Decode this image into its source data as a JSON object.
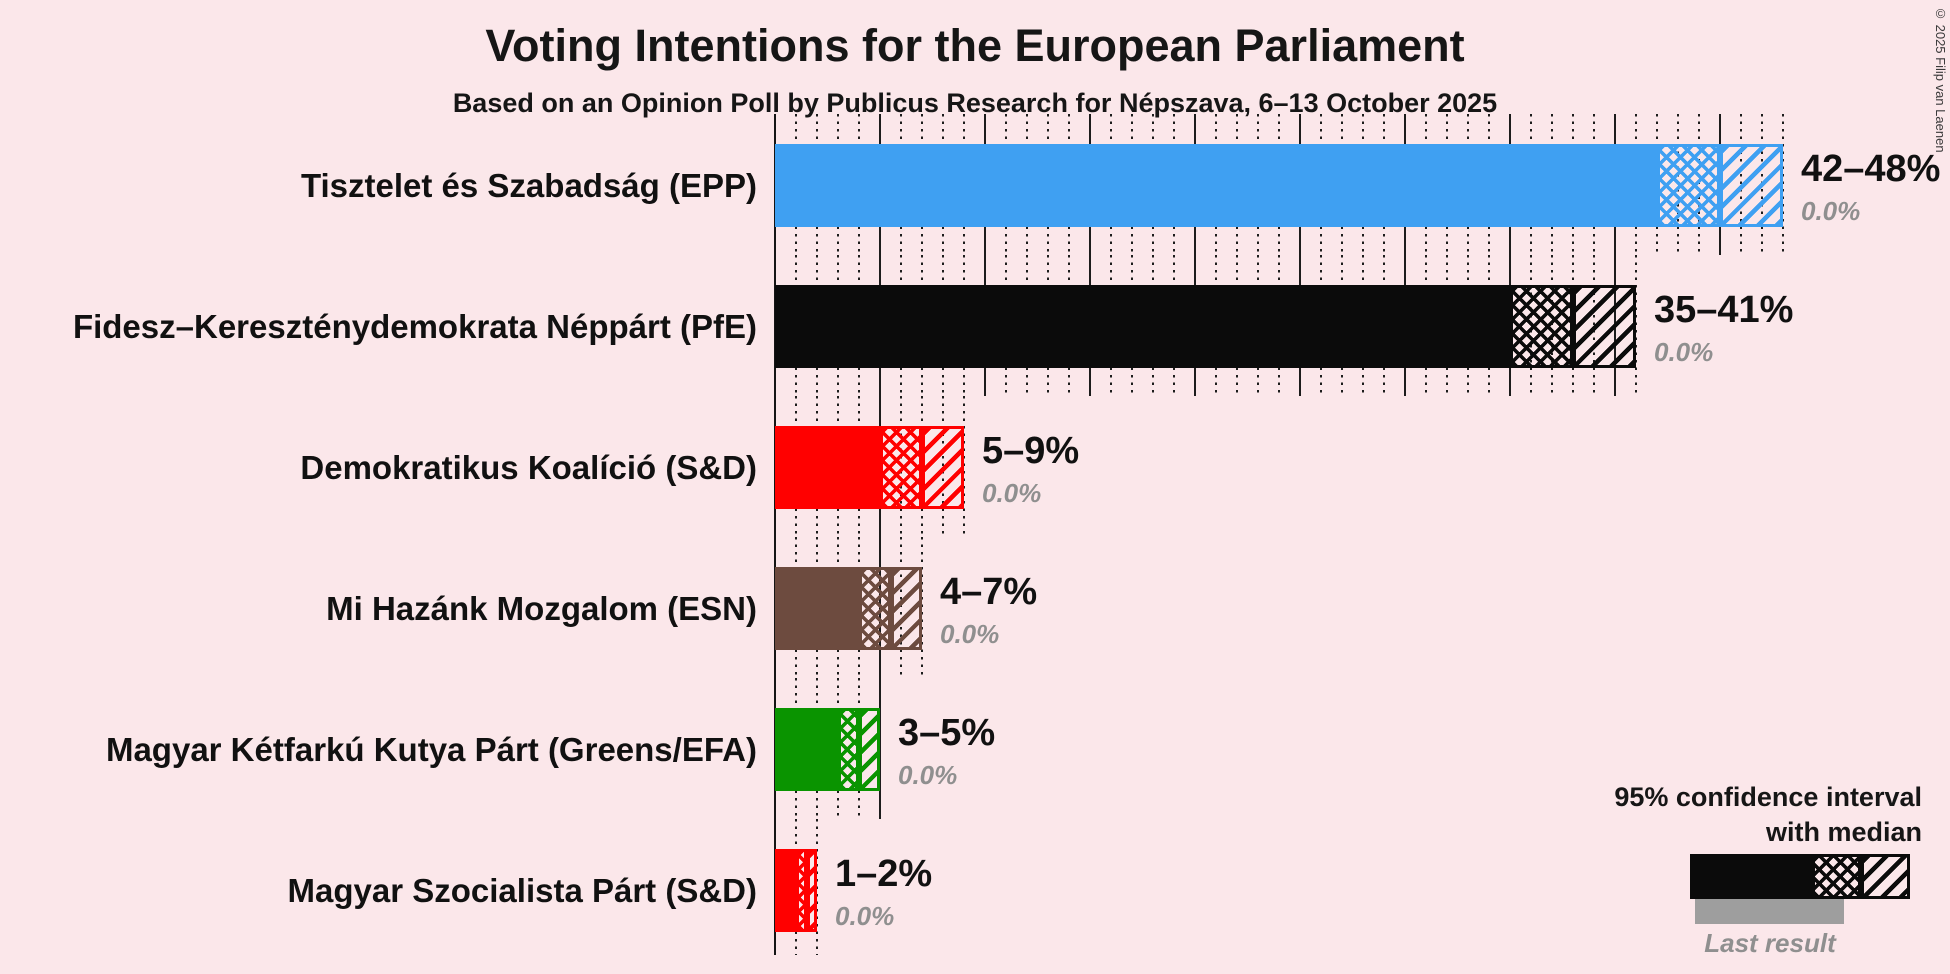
{
  "header": {
    "title": "Voting Intentions for the European Parliament",
    "subtitle": "Based on an Opinion Poll by Publicus Research for Népszava, 6–13 October 2025"
  },
  "chart_data": {
    "type": "bar",
    "orientation": "horizontal",
    "unit": "percent",
    "x_axis": {
      "min": 0,
      "max": 48,
      "gridline_step_pct": 1,
      "major_step_pct": 5,
      "grid": "dotted"
    },
    "legend_position": "bottom-right",
    "series": [
      {
        "label": "Tisztelet és Szabadság (EPP)",
        "ci_low": 42,
        "median": 45,
        "ci_high": 48,
        "range_label": "42–48%",
        "last_result": "0.0%",
        "color": "#3fa0f2"
      },
      {
        "label": "Fidesz–Kereszténydemokrata Néppárt (PfE)",
        "ci_low": 35,
        "median": 38,
        "ci_high": 41,
        "range_label": "35–41%",
        "last_result": "0.0%",
        "color": "#0b0b0b"
      },
      {
        "label": "Demokratikus Koalíció (S&D)",
        "ci_low": 5,
        "median": 7,
        "ci_high": 9,
        "range_label": "5–9%",
        "last_result": "0.0%",
        "color": "#ff0000"
      },
      {
        "label": "Mi Hazánk Mozgalom (ESN)",
        "ci_low": 4,
        "median": 5.5,
        "ci_high": 7,
        "range_label": "4–7%",
        "last_result": "0.0%",
        "color": "#6d4b3f"
      },
      {
        "label": "Magyar Kétfarkú Kutya Párt (Greens/EFA)",
        "ci_low": 3,
        "median": 4,
        "ci_high": 5,
        "range_label": "3–5%",
        "last_result": "0.0%",
        "color": "#0a9400"
      },
      {
        "label": "Magyar Szocialista Párt (S&D)",
        "ci_low": 1,
        "median": 1.5,
        "ci_high": 2,
        "range_label": "1–2%",
        "last_result": "0.0%",
        "color": "#ff0000"
      }
    ]
  },
  "legend": {
    "ci_label_line1": "95% confidence interval",
    "ci_label_line2": "with median",
    "last_result_label": "Last result",
    "sample_color": "#0b0b0b",
    "last_result_color": "#9e9e9e"
  },
  "footer": {
    "copyright": "© 2025 Filip van Laenen"
  },
  "colors": {
    "background": "#fbe7ea",
    "text": "#161616",
    "muted": "#8f8f8f"
  }
}
